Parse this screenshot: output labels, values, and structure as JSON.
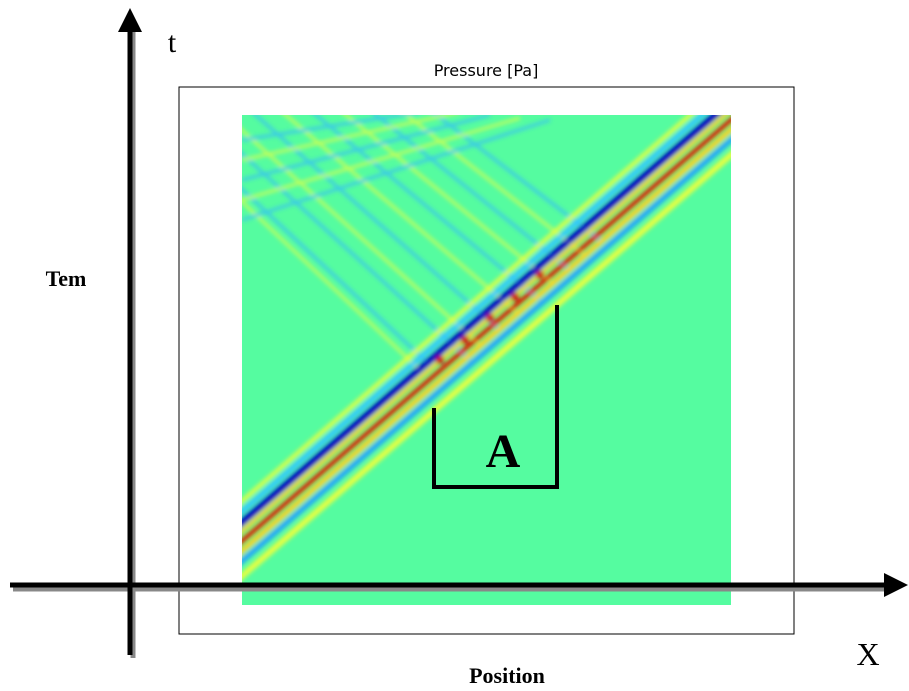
{
  "labels": {
    "t": "t",
    "title": "Pressure [Pa]",
    "y_label": "Tem",
    "region": "A",
    "x": "X",
    "x_label": "Position"
  }
}
